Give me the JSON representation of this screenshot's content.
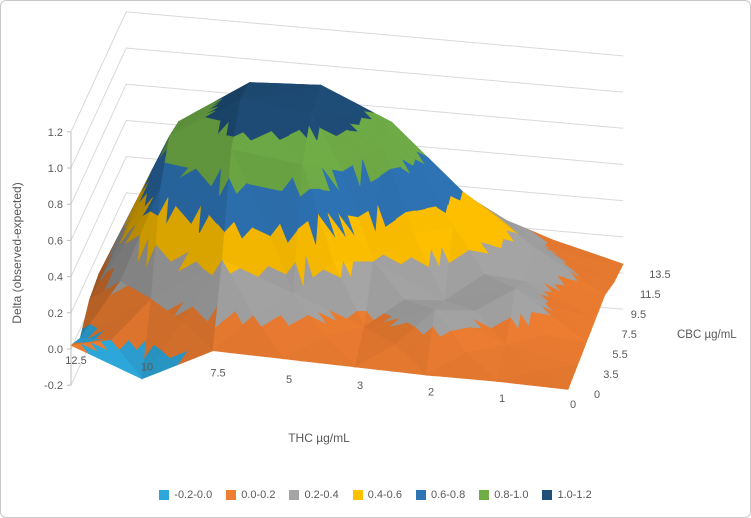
{
  "chart_data": {
    "type": "surface3d",
    "x_axis": {
      "title": "THC µg/mL",
      "categories": [
        "12.5",
        "10",
        "7.5",
        "5",
        "3",
        "2",
        "1",
        "0"
      ]
    },
    "series_axis": {
      "title": "CBC µg/mL",
      "categories": [
        "0",
        "3.5",
        "5.5",
        "7.5",
        "9.5",
        "11.5",
        "13.5"
      ]
    },
    "z_axis": {
      "title": "Delta (observed-expected)",
      "min": -0.2,
      "max": 1.2,
      "tick_step": 0.2,
      "tick_labels": [
        "-0.2",
        "0.0",
        "0.2",
        "0.4",
        "0.6",
        "0.8",
        "1.0",
        "1.2"
      ]
    },
    "bands": [
      {
        "label": "-0.2-0.0",
        "color": "#2EA8DC"
      },
      {
        "label": "0.0-0.2",
        "color": "#ED7D31"
      },
      {
        "label": "0.2-0.4",
        "color": "#A5A5A5"
      },
      {
        "label": "0.4-0.6",
        "color": "#FFC000"
      },
      {
        "label": "0.6-0.8",
        "color": "#2E74B5"
      },
      {
        "label": "0.8-1.0",
        "color": "#70AD47"
      },
      {
        "label": "1.0-1.2",
        "color": "#1F4E79"
      }
    ],
    "values": [
      [
        0.02,
        -0.13,
        0.06,
        0.05,
        0.04,
        0.03,
        0.03,
        0.02
      ],
      [
        -0.05,
        0.2,
        0.45,
        0.3,
        0.15,
        0.28,
        0.12,
        0.04
      ],
      [
        0.05,
        0.7,
        0.95,
        0.9,
        0.4,
        0.22,
        0.32,
        0.06
      ],
      [
        0.08,
        0.88,
        1.12,
        1.08,
        0.92,
        0.52,
        0.25,
        0.08
      ],
      [
        0.06,
        0.85,
        1.1,
        1.12,
        0.95,
        0.6,
        0.33,
        0.1
      ],
      [
        0.04,
        0.5,
        0.85,
        0.8,
        0.62,
        0.45,
        0.22,
        0.06
      ],
      [
        0.02,
        0.2,
        0.45,
        0.42,
        0.35,
        0.28,
        0.15,
        0.05
      ]
    ],
    "style": {
      "gridline_color": "#D9D9D9",
      "axis_line_color": "#BFBFBF",
      "tick_text_color": "#595959",
      "background": "#FFFFFF"
    },
    "legend_position": "bottom"
  }
}
